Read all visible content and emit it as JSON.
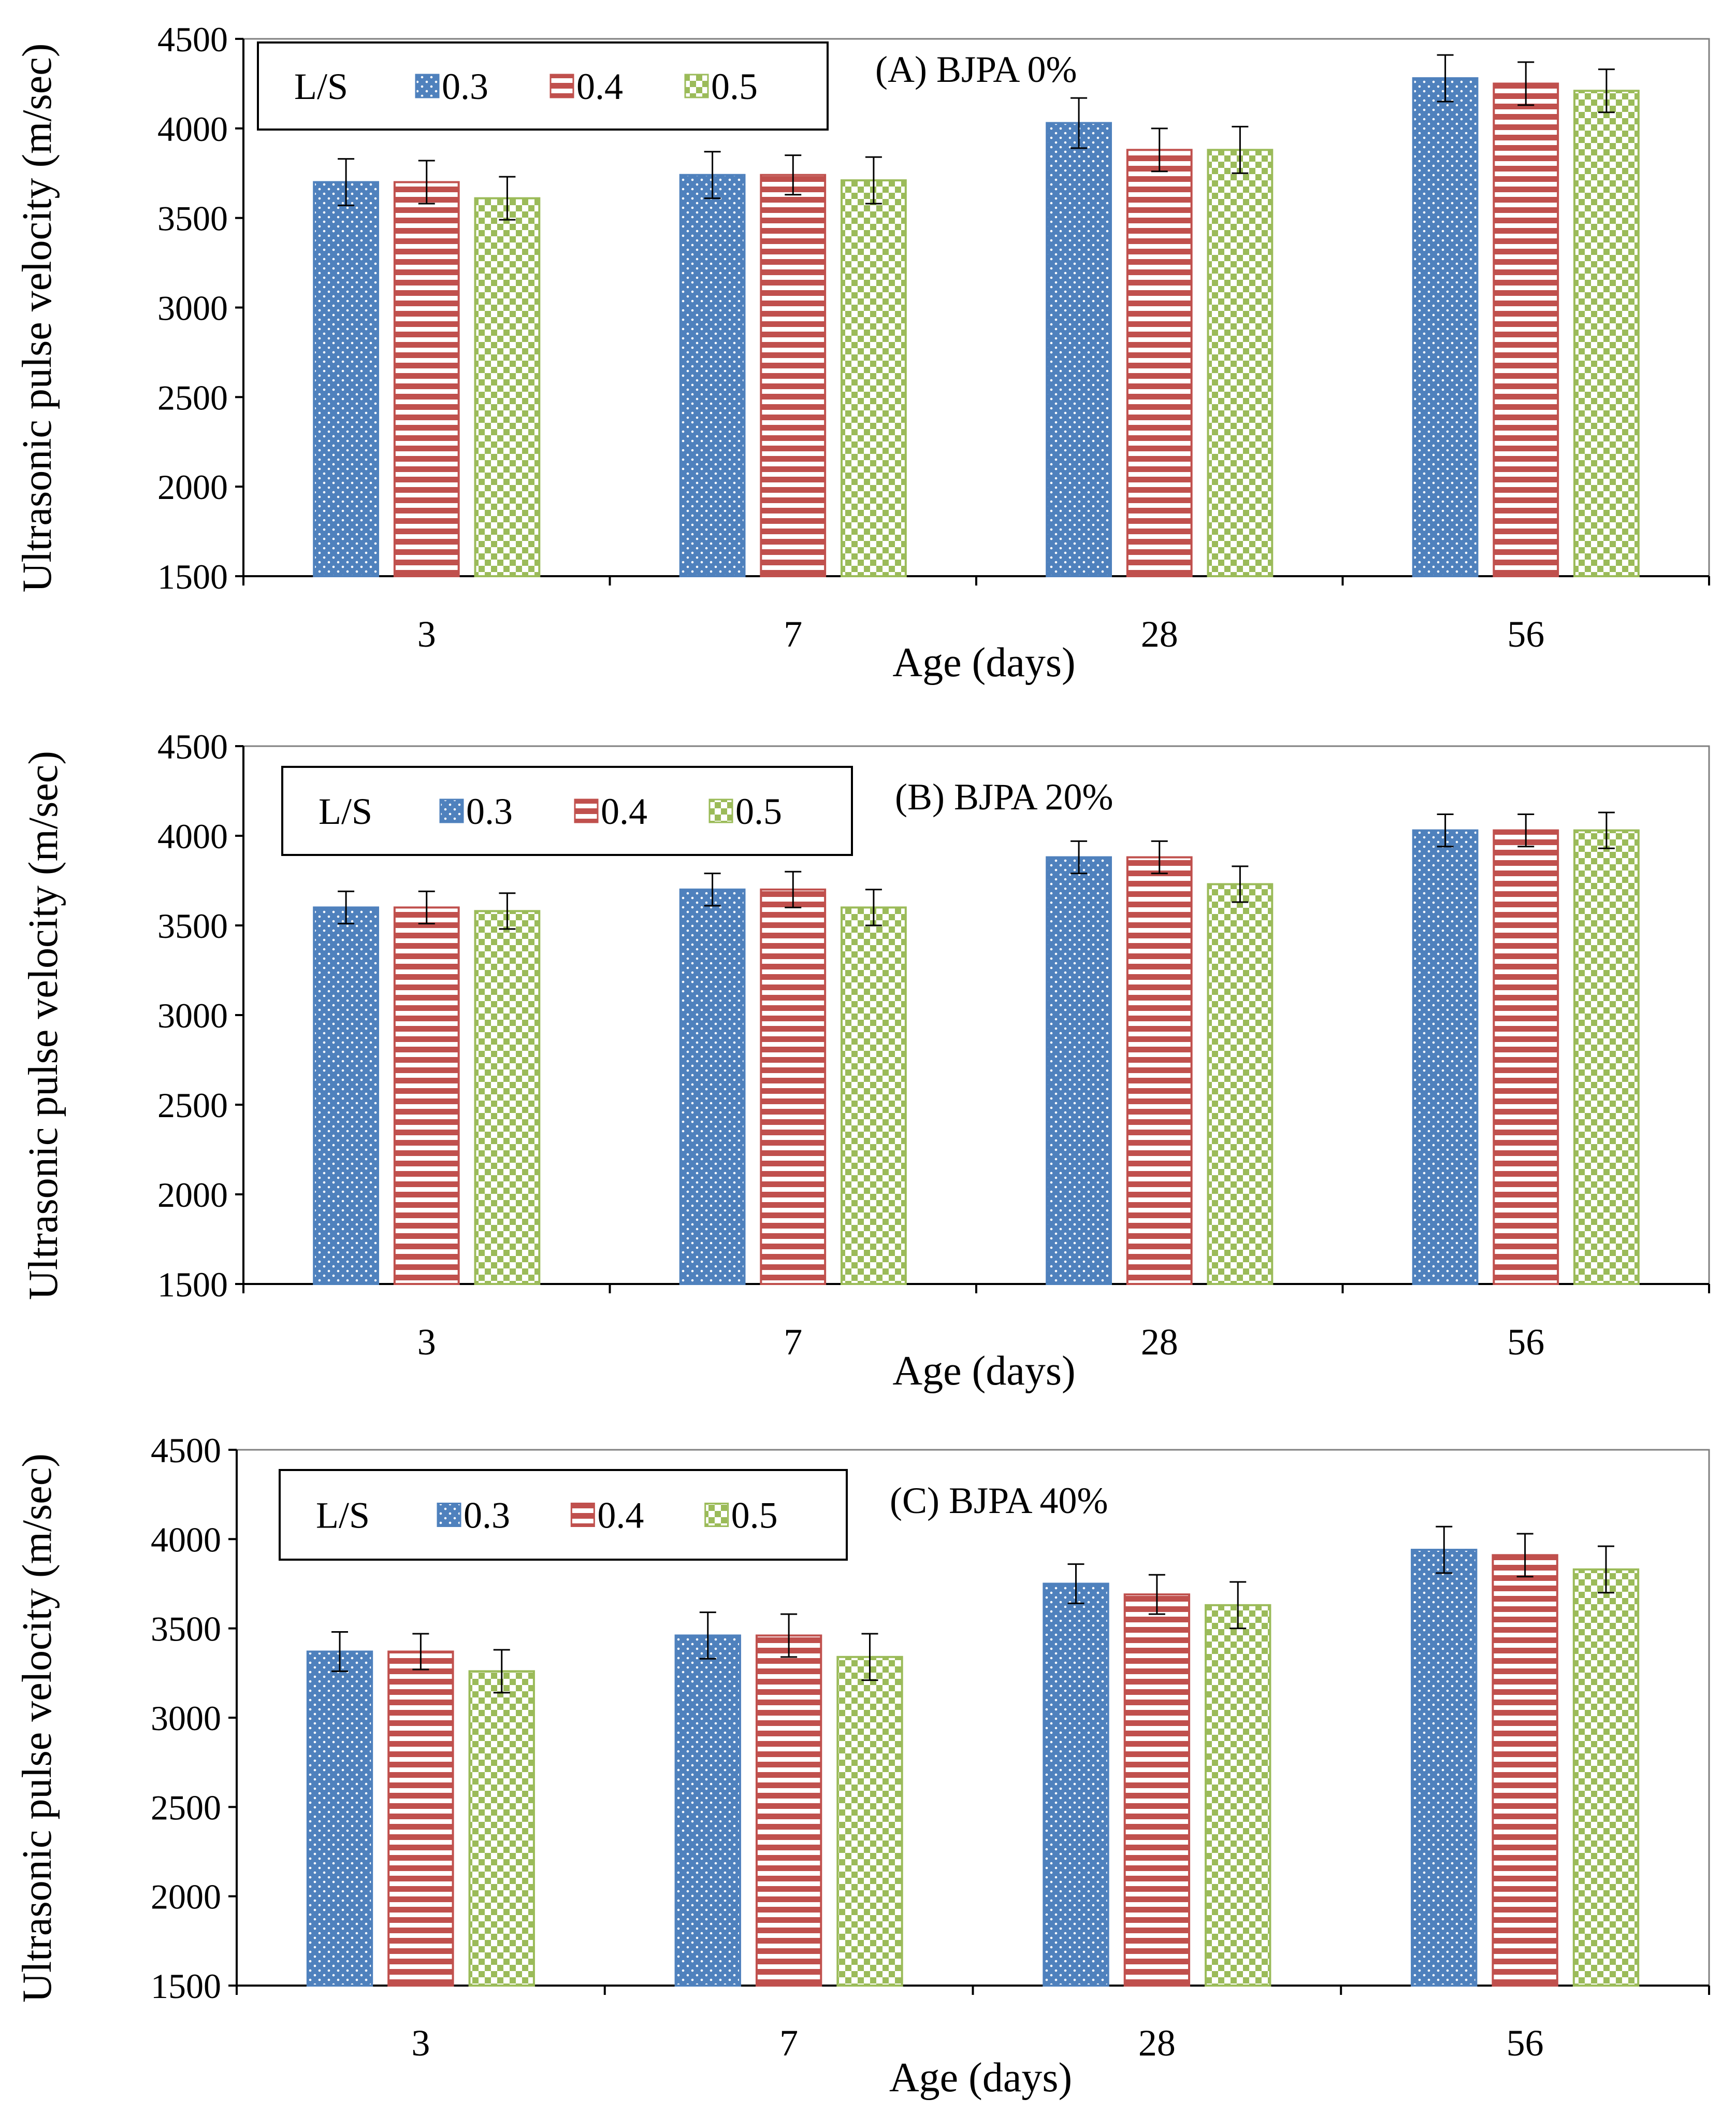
{
  "chart_data": [
    {
      "type": "bar",
      "panel_label": "(A)  BJPA 0%",
      "xlabel": "Age (days)",
      "ylabel": "Ultrasonic pulse velocity (m/sec)",
      "ylim": [
        1500,
        4500
      ],
      "yticks": [
        1500,
        2000,
        2500,
        3000,
        3500,
        4000,
        4500
      ],
      "categories": [
        "3",
        "7",
        "28",
        "56"
      ],
      "legend_title": "L/S",
      "series": [
        {
          "name": "0.3",
          "color": "#4F81BD",
          "pattern": "dots",
          "values": [
            3700,
            3740,
            4030,
            4280
          ],
          "errors": [
            130,
            130,
            140,
            130
          ]
        },
        {
          "name": "0.4",
          "color": "#C0504D",
          "pattern": "hlines",
          "values": [
            3700,
            3740,
            3880,
            4250
          ],
          "errors": [
            120,
            110,
            120,
            120
          ]
        },
        {
          "name": "0.5",
          "color": "#9BBB59",
          "pattern": "checks",
          "values": [
            3610,
            3710,
            3880,
            4210
          ],
          "errors": [
            120,
            130,
            130,
            120
          ]
        }
      ]
    },
    {
      "type": "bar",
      "panel_label": "(B)  BJPA 20%",
      "xlabel": "Age (days)",
      "ylabel": "Ultrasonic pulse velocity (m/sec)",
      "ylim": [
        1500,
        4500
      ],
      "yticks": [
        1500,
        2000,
        2500,
        3000,
        3500,
        4000,
        4500
      ],
      "categories": [
        "3",
        "7",
        "28",
        "56"
      ],
      "legend_title": "L/S",
      "series": [
        {
          "name": "0.3",
          "color": "#4F81BD",
          "pattern": "dots",
          "values": [
            3600,
            3700,
            3880,
            4030
          ],
          "errors": [
            90,
            90,
            90,
            90
          ]
        },
        {
          "name": "0.4",
          "color": "#C0504D",
          "pattern": "hlines",
          "values": [
            3600,
            3700,
            3880,
            4030
          ],
          "errors": [
            90,
            100,
            90,
            90
          ]
        },
        {
          "name": "0.5",
          "color": "#9BBB59",
          "pattern": "checks",
          "values": [
            3580,
            3600,
            3730,
            4030
          ],
          "errors": [
            100,
            100,
            100,
            100
          ]
        }
      ]
    },
    {
      "type": "bar",
      "panel_label": "(C)  BJPA 40%",
      "xlabel": "Age (days)",
      "ylabel": "Ultrasonic pulse velocity (m/sec)",
      "ylim": [
        1500,
        4500
      ],
      "yticks": [
        1500,
        2000,
        2500,
        3000,
        3500,
        4000,
        4500
      ],
      "categories": [
        "3",
        "7",
        "28",
        "56"
      ],
      "legend_title": "L/S",
      "series": [
        {
          "name": "0.3",
          "color": "#4F81BD",
          "pattern": "dots",
          "values": [
            3370,
            3460,
            3750,
            3940
          ],
          "errors": [
            110,
            130,
            110,
            130
          ]
        },
        {
          "name": "0.4",
          "color": "#C0504D",
          "pattern": "hlines",
          "values": [
            3370,
            3460,
            3690,
            3910
          ],
          "errors": [
            100,
            120,
            110,
            120
          ]
        },
        {
          "name": "0.5",
          "color": "#9BBB59",
          "pattern": "checks",
          "values": [
            3260,
            3340,
            3630,
            3830
          ],
          "errors": [
            120,
            130,
            130,
            130
          ]
        }
      ]
    }
  ]
}
